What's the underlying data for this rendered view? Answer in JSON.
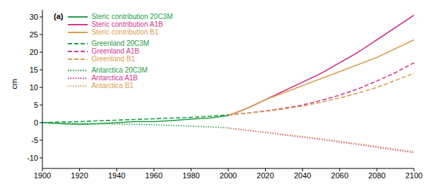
{
  "chart_data": {
    "type": "line",
    "annotation": "(a)",
    "y_label": "cm",
    "x": [
      1900,
      1910,
      1920,
      1930,
      1940,
      1950,
      1960,
      1970,
      1980,
      1990,
      2000,
      2010,
      2020,
      2030,
      2040,
      2050,
      2060,
      2070,
      2080,
      2090,
      2100
    ],
    "xlim": [
      1900,
      2100
    ],
    "xticks": [
      1900,
      1920,
      1940,
      1960,
      1980,
      2000,
      2020,
      2040,
      2060,
      2080,
      2100
    ],
    "ylim": [
      -13,
      32
    ],
    "yticks": [
      -10,
      -5,
      0,
      5,
      10,
      15,
      20,
      25,
      30
    ],
    "grid": false,
    "legend": "upper left",
    "series": [
      {
        "name": "Steric contribution 20C3M",
        "color": "#1f9e46",
        "line_style": "solid",
        "values": [
          0,
          -0.3,
          -0.5,
          -0.3,
          0,
          0.3,
          0.3,
          0.6,
          1.0,
          1.3,
          2.0,
          null,
          null,
          null,
          null,
          null,
          null,
          null,
          null,
          null,
          null
        ]
      },
      {
        "name": "Steric contribution A1B",
        "color": "#d0398c",
        "line_style": "solid",
        "values": [
          null,
          null,
          null,
          null,
          null,
          null,
          null,
          null,
          null,
          null,
          2.0,
          4.0,
          6.5,
          9.0,
          11.5,
          14.0,
          17.0,
          20.0,
          23.5,
          27.0,
          30.5
        ]
      },
      {
        "name": "Steric contribution B1",
        "color": "#d9a050",
        "line_style": "solid",
        "values": [
          null,
          null,
          null,
          null,
          null,
          null,
          null,
          null,
          null,
          null,
          2.0,
          4.0,
          6.5,
          8.5,
          10.5,
          12.5,
          14.5,
          16.5,
          18.5,
          21.0,
          23.5
        ]
      },
      {
        "name": "Greenland 20C3M",
        "color": "#1f9e46",
        "line_style": "dashed",
        "values": [
          0,
          0.2,
          0.3,
          0.5,
          0.7,
          0.9,
          1.1,
          1.3,
          1.5,
          1.8,
          2.2,
          null,
          null,
          null,
          null,
          null,
          null,
          null,
          null,
          null,
          null
        ]
      },
      {
        "name": "Greenland A1B",
        "color": "#d0398c",
        "line_style": "dashed",
        "values": [
          null,
          null,
          null,
          null,
          null,
          null,
          null,
          null,
          null,
          null,
          2.2,
          2.7,
          3.3,
          4.1,
          5.0,
          6.3,
          7.8,
          9.6,
          11.8,
          14.2,
          17.0
        ]
      },
      {
        "name": "Greenland B1",
        "color": "#d9a050",
        "line_style": "dashed",
        "values": [
          null,
          null,
          null,
          null,
          null,
          null,
          null,
          null,
          null,
          null,
          2.2,
          2.7,
          3.2,
          3.9,
          4.7,
          5.8,
          7.0,
          8.4,
          10.0,
          12.0,
          14.0
        ]
      },
      {
        "name": "Antarctica 20C3M",
        "color": "#1f9e46",
        "line_style": "dotted",
        "values": [
          0,
          -0.1,
          -0.2,
          -0.3,
          -0.4,
          -0.5,
          -0.6,
          -0.8,
          -1.0,
          -1.2,
          -1.5,
          null,
          null,
          null,
          null,
          null,
          null,
          null,
          null,
          null,
          null
        ]
      },
      {
        "name": "Antarctica A1B",
        "color": "#d0398c",
        "line_style": "dotted",
        "values": [
          null,
          null,
          null,
          null,
          null,
          null,
          null,
          null,
          null,
          null,
          -1.5,
          -2.2,
          -2.8,
          -3.5,
          -4.1,
          -4.8,
          -5.5,
          -6.2,
          -7.0,
          -7.8,
          -8.5
        ]
      },
      {
        "name": "Antarctica B1",
        "color": "#d9a050",
        "line_style": "dotted",
        "values": [
          null,
          null,
          null,
          null,
          null,
          null,
          null,
          null,
          null,
          null,
          -1.5,
          -2.1,
          -2.7,
          -3.3,
          -3.9,
          -4.6,
          -5.3,
          -6.0,
          -6.7,
          -7.5,
          -8.2
        ]
      }
    ]
  }
}
